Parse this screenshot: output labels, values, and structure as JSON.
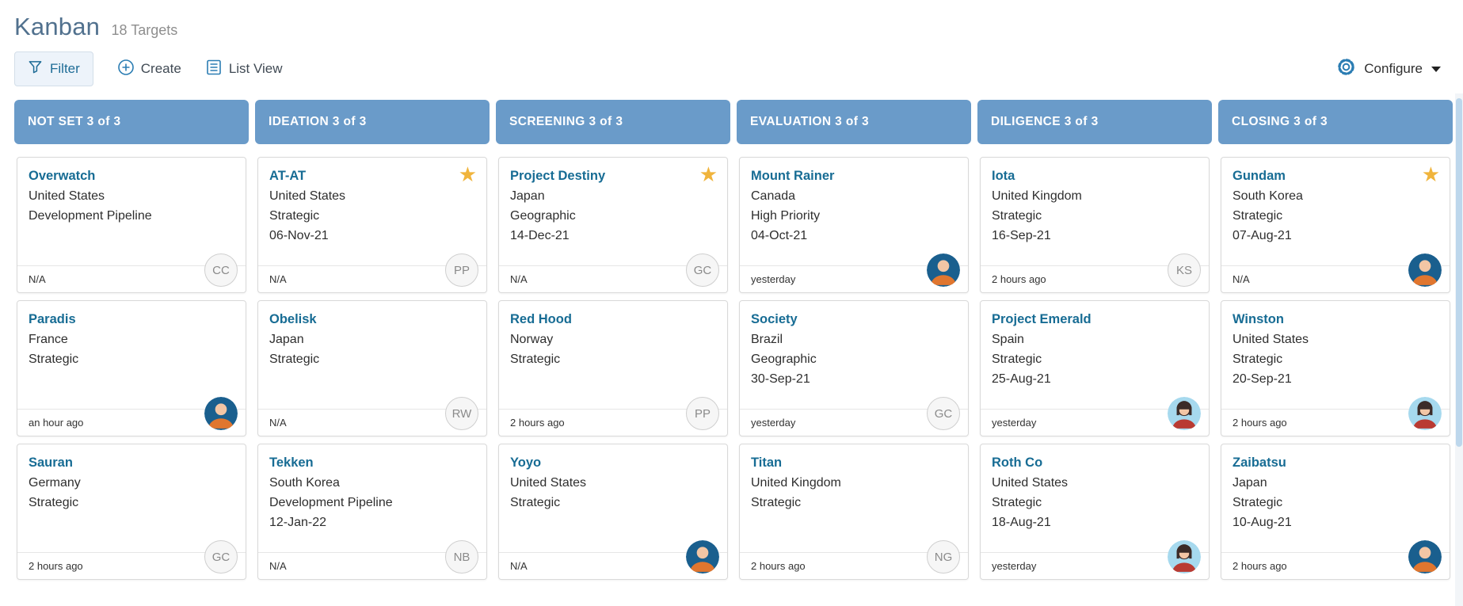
{
  "page": {
    "title": "Kanban",
    "subtitle": "18 Targets"
  },
  "toolbar": {
    "filter": "Filter",
    "create": "Create",
    "list_view": "List View",
    "configure": "Configure"
  },
  "icons": {
    "star": "★"
  },
  "colors": {
    "column_header": "#6A9BC9",
    "card_title_link": "#176C94",
    "star": "#F0B43C",
    "toolbar_icon": "#2B7DB3"
  },
  "board": {
    "columns": [
      {
        "title": "NOT SET 3 of 3",
        "cards": [
          {
            "name": "Overwatch",
            "country": "United States",
            "category": "Development Pipeline",
            "date": "",
            "timestamp": "N/A",
            "starred": false,
            "avatar": {
              "kind": "initials",
              "initials": "CC"
            }
          },
          {
            "name": "Paradis",
            "country": "France",
            "category": "Strategic",
            "date": "",
            "timestamp": "an hour ago",
            "starred": false,
            "avatar": {
              "kind": "man"
            }
          },
          {
            "name": "Sauran",
            "country": "Germany",
            "category": "Strategic",
            "date": "",
            "timestamp": "2 hours ago",
            "starred": false,
            "avatar": {
              "kind": "initials",
              "initials": "GC"
            }
          }
        ]
      },
      {
        "title": "IDEATION 3 of 3",
        "cards": [
          {
            "name": "AT-AT",
            "country": "United States",
            "category": "Strategic",
            "date": "06-Nov-21",
            "timestamp": "N/A",
            "starred": true,
            "avatar": {
              "kind": "initials",
              "initials": "PP"
            }
          },
          {
            "name": "Obelisk",
            "country": "Japan",
            "category": "Strategic",
            "date": "",
            "timestamp": "N/A",
            "starred": false,
            "avatar": {
              "kind": "initials",
              "initials": "RW"
            }
          },
          {
            "name": "Tekken",
            "country": "South Korea",
            "category": "Development Pipeline",
            "date": "12-Jan-22",
            "timestamp": "N/A",
            "starred": false,
            "avatar": {
              "kind": "initials",
              "initials": "NB"
            }
          }
        ]
      },
      {
        "title": "SCREENING 3 of 3",
        "cards": [
          {
            "name": "Project Destiny",
            "country": "Japan",
            "category": "Geographic",
            "date": "14-Dec-21",
            "timestamp": "N/A",
            "starred": true,
            "avatar": {
              "kind": "initials",
              "initials": "GC"
            }
          },
          {
            "name": "Red Hood",
            "country": "Norway",
            "category": "Strategic",
            "date": "",
            "timestamp": "2 hours ago",
            "starred": false,
            "avatar": {
              "kind": "initials",
              "initials": "PP"
            }
          },
          {
            "name": "Yoyo",
            "country": "United States",
            "category": "Strategic",
            "date": "",
            "timestamp": "N/A",
            "starred": false,
            "avatar": {
              "kind": "man"
            }
          }
        ]
      },
      {
        "title": "EVALUATION 3 of 3",
        "cards": [
          {
            "name": "Mount Rainer",
            "country": "Canada",
            "category": "High Priority",
            "date": "04-Oct-21",
            "timestamp": "yesterday",
            "starred": false,
            "avatar": {
              "kind": "man"
            }
          },
          {
            "name": "Society",
            "country": "Brazil",
            "category": "Geographic",
            "date": "30-Sep-21",
            "timestamp": "yesterday",
            "starred": false,
            "avatar": {
              "kind": "initials",
              "initials": "GC"
            }
          },
          {
            "name": "Titan",
            "country": "United Kingdom",
            "category": "Strategic",
            "date": "",
            "timestamp": "2 hours ago",
            "starred": false,
            "avatar": {
              "kind": "initials",
              "initials": "NG"
            }
          }
        ]
      },
      {
        "title": "DILIGENCE 3 of 3",
        "cards": [
          {
            "name": "Iota",
            "country": "United Kingdom",
            "category": "Strategic",
            "date": "16-Sep-21",
            "timestamp": "2 hours ago",
            "starred": false,
            "avatar": {
              "kind": "initials",
              "initials": "KS"
            }
          },
          {
            "name": "Project Emerald",
            "country": "Spain",
            "category": "Strategic",
            "date": "25-Aug-21",
            "timestamp": "yesterday",
            "starred": false,
            "avatar": {
              "kind": "woman"
            }
          },
          {
            "name": "Roth Co",
            "country": "United States",
            "category": "Strategic",
            "date": "18-Aug-21",
            "timestamp": "yesterday",
            "starred": false,
            "avatar": {
              "kind": "woman"
            }
          }
        ]
      },
      {
        "title": "CLOSING 3 of 3",
        "cards": [
          {
            "name": "Gundam",
            "country": "South Korea",
            "category": "Strategic",
            "date": "07-Aug-21",
            "timestamp": "N/A",
            "starred": true,
            "avatar": {
              "kind": "man"
            }
          },
          {
            "name": "Winston",
            "country": "United States",
            "category": "Strategic",
            "date": "20-Sep-21",
            "timestamp": "2 hours ago",
            "starred": false,
            "avatar": {
              "kind": "woman"
            }
          },
          {
            "name": "Zaibatsu",
            "country": "Japan",
            "category": "Strategic",
            "date": "10-Aug-21",
            "timestamp": "2 hours ago",
            "starred": false,
            "avatar": {
              "kind": "man"
            }
          }
        ]
      }
    ]
  }
}
